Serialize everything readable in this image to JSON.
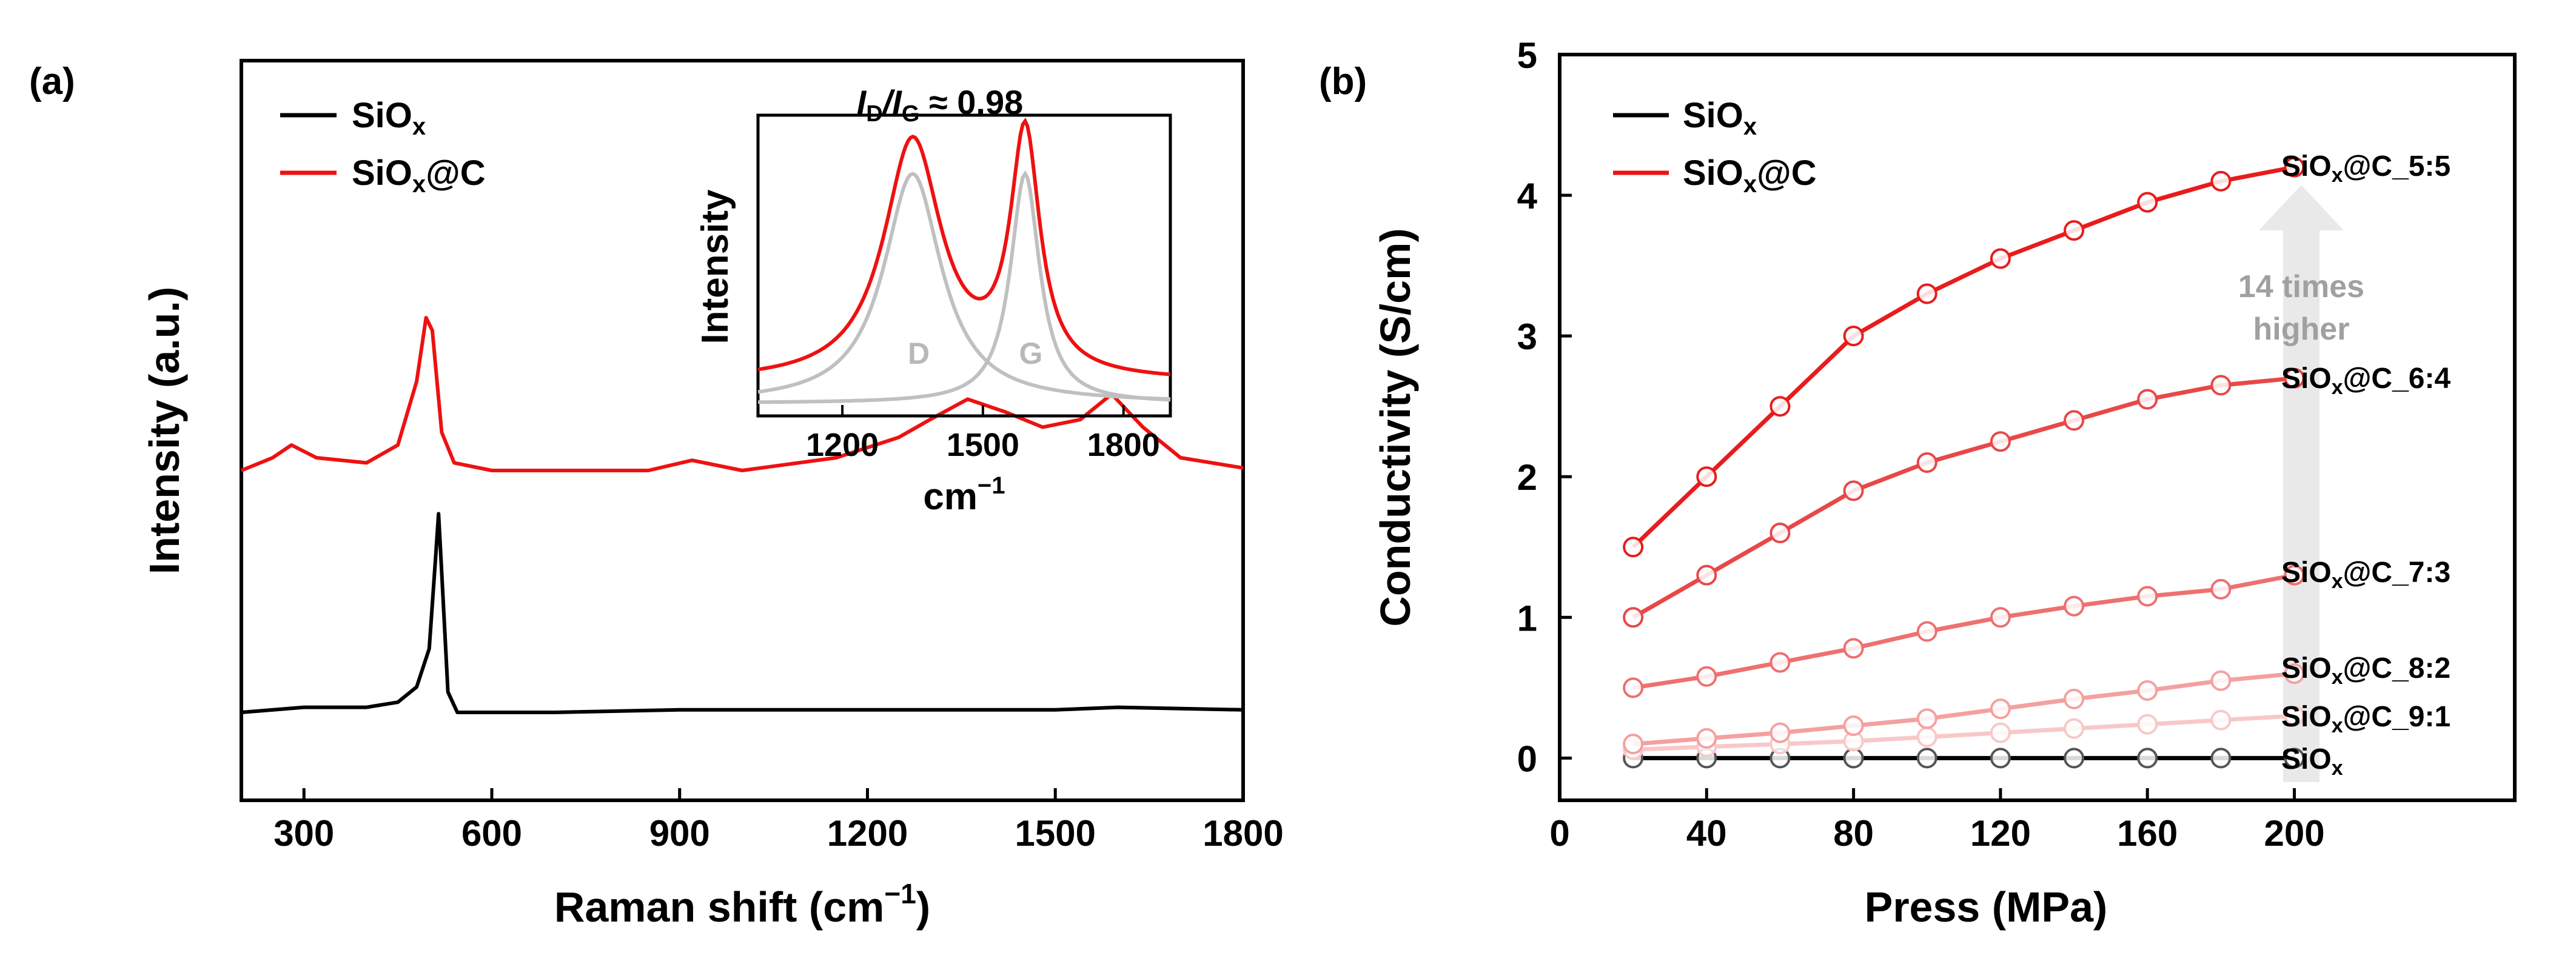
{
  "panel_a": {
    "label": "(a)",
    "xlabel": "Raman shift (cm",
    "xlabel_sup": "−1",
    "xlabel_close": ")",
    "ylabel": "Intensity (a.u.)",
    "xticks": [
      "300",
      "600",
      "900",
      "1200",
      "1500",
      "1800"
    ],
    "legend": [
      {
        "prefix": "SiO",
        "sub": "x",
        "suffix": "",
        "color": "#000000"
      },
      {
        "prefix": "SiO",
        "sub": "x",
        "suffix": "@C",
        "color": "#ee1111"
      }
    ],
    "inset": {
      "title_I1": "I",
      "title_D": "D",
      "title_slash": "/",
      "title_I2": "I",
      "title_G": "G",
      "title_value": " ≈ 0.98",
      "ylabel": "Intensity",
      "xlabel": "cm",
      "xlabel_sup": "−1",
      "xticks": [
        "1200",
        "1500",
        "1800"
      ],
      "peak_D": "D",
      "peak_G": "G"
    }
  },
  "panel_b": {
    "label": "(b)",
    "xlabel": "Press (MPa)",
    "ylabel": "Conductivity (S/cm)",
    "xticks": [
      "0",
      "40",
      "80",
      "120",
      "160",
      "200"
    ],
    "yticks": [
      "0",
      "1",
      "2",
      "3",
      "4",
      "5"
    ],
    "legend": [
      {
        "prefix": "SiO",
        "sub": "x",
        "suffix": "",
        "color": "#000000"
      },
      {
        "prefix": "SiO",
        "sub": "x",
        "suffix": "@C",
        "color": "#ee1111"
      }
    ],
    "annotation_line1": "14 times",
    "annotation_line2": "higher",
    "series_labels": [
      {
        "prefix": "SiO",
        "sub": "x",
        "suffix": "@C_5:5"
      },
      {
        "prefix": "SiO",
        "sub": "x",
        "suffix": "@C_6:4"
      },
      {
        "prefix": "SiO",
        "sub": "x",
        "suffix": "@C_7:3"
      },
      {
        "prefix": "SiO",
        "sub": "x",
        "suffix": "@C_8:2"
      },
      {
        "prefix": "SiO",
        "sub": "x",
        "suffix": "@C_9:1"
      },
      {
        "prefix": "SiO",
        "sub": "x",
        "suffix": ""
      }
    ]
  },
  "chart_data": [
    {
      "type": "line",
      "title": "",
      "xlabel": "Raman shift (cm−1)",
      "ylabel": "Intensity (a.u.)",
      "xlim": [
        200,
        1800
      ],
      "grid": false,
      "series": [
        {
          "name": "SiOx",
          "color": "#000000",
          "x": [
            200,
            300,
            350,
            400,
            450,
            480,
            500,
            510,
            515,
            520,
            530,
            545,
            600,
            700,
            900,
            1200,
            1500,
            1600,
            1800
          ],
          "values": [
            0.0,
            0.02,
            0.02,
            0.02,
            0.04,
            0.1,
            0.25,
            0.6,
            0.78,
            0.55,
            0.08,
            0.0,
            0.0,
            0.0,
            0.01,
            0.01,
            0.01,
            0.02,
            0.01
          ]
        },
        {
          "name": "SiOx@C",
          "color": "#ee1111",
          "x": [
            200,
            250,
            280,
            320,
            400,
            450,
            480,
            495,
            505,
            520,
            540,
            600,
            700,
            850,
            920,
            1000,
            1150,
            1250,
            1300,
            1360,
            1420,
            1480,
            1540,
            1590,
            1640,
            1700,
            1800
          ],
          "values": [
            0.95,
            1.0,
            1.05,
            1.0,
            0.98,
            1.05,
            1.3,
            1.55,
            1.5,
            1.1,
            0.98,
            0.95,
            0.95,
            0.95,
            0.99,
            0.95,
            1.0,
            1.08,
            1.15,
            1.23,
            1.18,
            1.12,
            1.15,
            1.25,
            1.12,
            1.0,
            0.96
          ]
        }
      ]
    },
    {
      "type": "line",
      "title": "ID/IG ≈ 0.98 (inset)",
      "xlabel": "cm−1",
      "ylabel": "Intensity",
      "xlim": [
        1020,
        1900
      ],
      "series": [
        {
          "name": "Fit total",
          "color": "#ee1111",
          "peaks": [
            {
              "center": 1350,
              "height": 1.0
            },
            {
              "center": 1590,
              "height": 1.02
            }
          ]
        },
        {
          "name": "D",
          "color": "#c0c0c0",
          "peaks": [
            {
              "center": 1350,
              "height": 0.88
            }
          ]
        },
        {
          "name": "G",
          "color": "#c0c0c0",
          "peaks": [
            {
              "center": 1590,
              "height": 0.88
            }
          ]
        }
      ]
    },
    {
      "type": "line",
      "title": "",
      "xlabel": "Press (MPa)",
      "ylabel": "Conductivity (S/cm)",
      "xlim": [
        0,
        260
      ],
      "ylim": [
        -0.3,
        5
      ],
      "grid": false,
      "x": [
        20,
        40,
        60,
        80,
        100,
        120,
        140,
        160,
        180,
        200
      ],
      "series": [
        {
          "name": "SiOx@C_5:5",
          "color": "#e81c1c",
          "values": [
            1.5,
            2.0,
            2.5,
            3.0,
            3.3,
            3.55,
            3.75,
            3.95,
            4.1,
            4.2
          ]
        },
        {
          "name": "SiOx@C_6:4",
          "color": "#e84848",
          "values": [
            1.0,
            1.3,
            1.6,
            1.9,
            2.1,
            2.25,
            2.4,
            2.55,
            2.65,
            2.7
          ]
        },
        {
          "name": "SiOx@C_7:3",
          "color": "#ee7070",
          "values": [
            0.5,
            0.58,
            0.68,
            0.78,
            0.9,
            1.0,
            1.08,
            1.15,
            1.2,
            1.3
          ]
        },
        {
          "name": "SiOx@C_8:2",
          "color": "#f4a0a0",
          "values": [
            0.1,
            0.14,
            0.18,
            0.23,
            0.28,
            0.35,
            0.42,
            0.48,
            0.55,
            0.6
          ]
        },
        {
          "name": "SiOx@C_9:1",
          "color": "#f8c8c8",
          "values": [
            0.06,
            0.08,
            0.1,
            0.12,
            0.15,
            0.18,
            0.21,
            0.24,
            0.27,
            0.3
          ]
        },
        {
          "name": "SiOx",
          "color": "#000000",
          "values": [
            0,
            0,
            0,
            0,
            0,
            0,
            0,
            0,
            0,
            0
          ]
        }
      ],
      "annotation": "14 times higher"
    }
  ]
}
